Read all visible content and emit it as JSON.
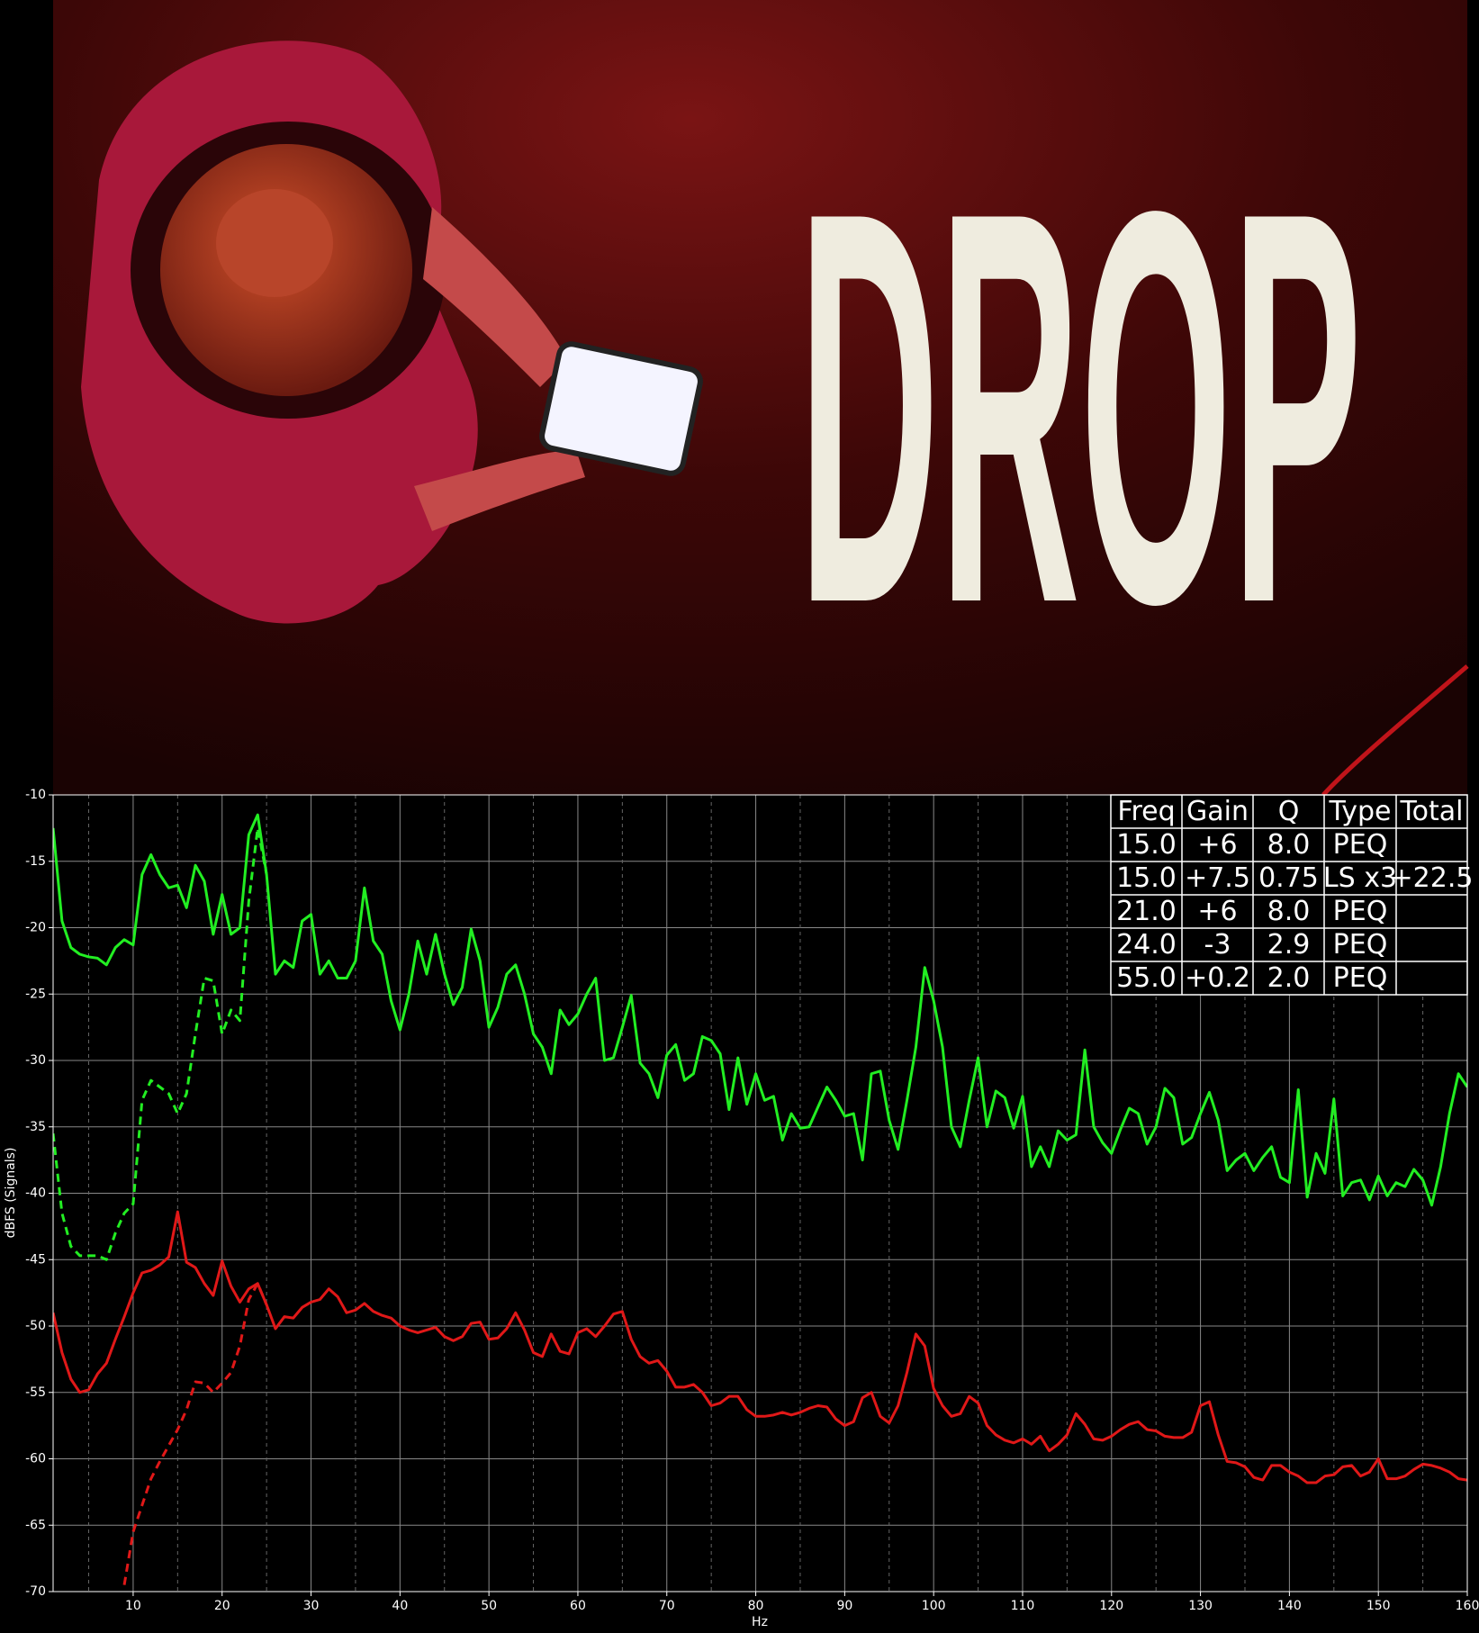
{
  "poster": {
    "title": "DROP"
  },
  "chart_data": {
    "type": "line",
    "xlabel": "Hz",
    "ylabel": "dBFS (Signals)",
    "xlim": [
      1,
      160
    ],
    "ylim": [
      -70,
      -10
    ],
    "xticks": [
      10,
      20,
      30,
      40,
      50,
      60,
      70,
      80,
      90,
      100,
      110,
      120,
      130,
      140,
      150,
      160
    ],
    "xminorticks": [
      5,
      15,
      25,
      35,
      45,
      55,
      65,
      75,
      85,
      95,
      105,
      115,
      125,
      135,
      145,
      155
    ],
    "yticks": [
      -10,
      -15,
      -20,
      -25,
      -30,
      -35,
      -40,
      -45,
      -50,
      -55,
      -60,
      -65,
      -70
    ],
    "grid": true,
    "x": [
      1,
      2,
      3,
      4,
      5,
      6,
      7,
      8,
      9,
      10,
      11,
      12,
      13,
      14,
      15,
      16,
      17,
      18,
      19,
      20,
      21,
      22,
      23,
      24,
      25,
      26,
      27,
      28,
      29,
      30,
      31,
      32,
      33,
      34,
      35,
      36,
      37,
      38,
      39,
      40,
      41,
      42,
      43,
      44,
      45,
      46,
      47,
      48,
      49,
      50,
      51,
      52,
      53,
      54,
      55,
      56,
      57,
      58,
      59,
      60,
      61,
      62,
      63,
      64,
      65,
      66,
      67,
      68,
      69,
      70,
      71,
      72,
      73,
      74,
      75,
      76,
      77,
      78,
      79,
      80,
      81,
      82,
      83,
      84,
      85,
      86,
      87,
      88,
      89,
      90,
      91,
      92,
      93,
      94,
      95,
      96,
      97,
      98,
      99,
      100,
      101,
      102,
      103,
      104,
      105,
      106,
      107,
      108,
      109,
      110,
      111,
      112,
      113,
      114,
      115,
      116,
      117,
      118,
      119,
      120,
      121,
      122,
      123,
      124,
      125,
      126,
      127,
      128,
      129,
      130,
      131,
      132,
      133,
      134,
      135,
      136,
      137,
      138,
      139,
      140,
      141,
      142,
      143,
      144,
      145,
      146,
      147,
      148,
      149,
      150,
      151,
      152,
      153,
      154,
      155,
      156,
      157,
      158,
      159,
      160
    ],
    "series": [
      {
        "color": "#22ee22",
        "dash": false,
        "values": [
          -12.5,
          -19.5,
          -21.5,
          -22,
          -22.2,
          -22.3,
          -22.8,
          -21.5,
          -20.9,
          -21.3,
          -16,
          -14.5,
          -16,
          -17,
          -16.8,
          -18.5,
          -15.3,
          -16.5,
          -20.5,
          -17.5,
          -20.5,
          -20,
          -13,
          -11.5,
          -16,
          -23.5,
          -22.5,
          -23,
          -19.5,
          -19,
          -23.5,
          -22.5,
          -23.8,
          -23.8,
          -22.5,
          -17,
          -21,
          -22,
          -25.5,
          -27.7,
          -25,
          -21,
          -23.5,
          -20.5,
          -23.5,
          -25.8,
          -24.5,
          -20.1,
          -22.5,
          -27.5,
          -26,
          -23.5,
          -22.8,
          -25,
          -28,
          -29,
          -31,
          -26.2,
          -27.3,
          -26.5,
          -25,
          -23.8,
          -30,
          -29.8,
          -27.5,
          -25.1,
          -30.2,
          -31,
          -32.8,
          -29.6,
          -28.8,
          -31.5,
          -31,
          -28.2,
          -28.5,
          -29.5,
          -33.7,
          -29.8,
          -33.3,
          -31,
          -33,
          -32.7,
          -36,
          -34,
          -35.1,
          -35,
          -33.5,
          -32,
          -33,
          -34.2,
          -34,
          -37.5,
          -31,
          -30.8,
          -34.5,
          -36.7,
          -33,
          -29,
          -23,
          -25.5,
          -29,
          -35,
          -36.5,
          -33,
          -29.8,
          -35,
          -32.3,
          -32.8,
          -35.1,
          -32.7,
          -38,
          -36.5,
          -38,
          -35.3,
          -36,
          -35.6,
          -29.2,
          -35,
          -36.2,
          -37,
          -35.2,
          -33.6,
          -34,
          -36.3,
          -35,
          -32.1,
          -32.8,
          -36.3,
          -35.8,
          -34,
          -32.4,
          -34.5,
          -38.3,
          -37.5,
          -37,
          -38.3,
          -37.3,
          -36.5,
          -38.8,
          -39.2,
          -32.2,
          -40.3,
          -37,
          -38.5,
          -32.9,
          -40.2,
          -39.2,
          -39,
          -40.5,
          -38.7,
          -40.2,
          -39.2,
          -39.5,
          -38.2,
          -39,
          -40.9,
          -38,
          -34,
          -31,
          -32
        ]
      },
      {
        "color": "#22ee22",
        "dash": true,
        "x": [
          1,
          2,
          3,
          4,
          5,
          6,
          7,
          8,
          9,
          10,
          11,
          12,
          13,
          14,
          15,
          16,
          17,
          18,
          19,
          20,
          21,
          22,
          23,
          24,
          25
        ],
        "values": [
          -35.5,
          -41.5,
          -44,
          -44.7,
          -44.7,
          -44.7,
          -45,
          -43,
          -41.5,
          -40.8,
          -33,
          -31.5,
          -32,
          -32.5,
          -34,
          -32.5,
          -28,
          -23.8,
          -24,
          -28,
          -26.2,
          -27,
          -18,
          -12.5,
          -16
        ]
      },
      {
        "color": "#e01818",
        "dash": false,
        "values": [
          -49,
          -52,
          -54,
          -55,
          -54.8,
          -53.6,
          -52.8,
          -51,
          -49.3,
          -47.5,
          -46,
          -45.8,
          -45.4,
          -44.8,
          -41.4,
          -45.2,
          -45.6,
          -46.8,
          -47.7,
          -45.1,
          -47,
          -48.2,
          -47.2,
          -46.8,
          -48.4,
          -50.2,
          -49.3,
          -49.4,
          -48.6,
          -48.2,
          -48,
          -47.2,
          -47.8,
          -49,
          -48.8,
          -48.3,
          -48.9,
          -49.2,
          -49.4,
          -50,
          -50.3,
          -50.5,
          -50.3,
          -50.1,
          -50.8,
          -51.1,
          -50.8,
          -49.8,
          -49.7,
          -51,
          -50.9,
          -50.2,
          -49,
          -50.3,
          -52,
          -52.3,
          -50.6,
          -51.9,
          -52.1,
          -50.5,
          -50.2,
          -50.8,
          -50,
          -49.1,
          -48.9,
          -51,
          -52.3,
          -52.8,
          -52.6,
          -53.4,
          -54.6,
          -54.6,
          -54.4,
          -55,
          -56,
          -55.8,
          -55.3,
          -55.3,
          -56.3,
          -56.8,
          -56.8,
          -56.7,
          -56.5,
          -56.7,
          -56.5,
          -56.2,
          -56,
          -56.1,
          -57,
          -57.5,
          -57.2,
          -55.4,
          -55,
          -56.8,
          -57.3,
          -56,
          -53.5,
          -50.6,
          -51.5,
          -54.7,
          -56,
          -56.8,
          -56.6,
          -55.3,
          -55.8,
          -57.5,
          -58.2,
          -58.6,
          -58.8,
          -58.5,
          -58.9,
          -58.3,
          -59.4,
          -58.9,
          -58.2,
          -56.6,
          -57.4,
          -58.5,
          -58.6,
          -58.3,
          -57.8,
          -57.4,
          -57.2,
          -57.8,
          -57.9,
          -58.3,
          -58.4,
          -58.4,
          -58,
          -56,
          -55.7,
          -58.2,
          -60.2,
          -60.3,
          -60.6,
          -61.4,
          -61.6,
          -60.5,
          -60.5,
          -61,
          -61.3,
          -61.8,
          -61.8,
          -61.3,
          -61.2,
          -60.6,
          -60.5,
          -61.3,
          -61,
          -60,
          -61.5,
          -61.5,
          -61.3,
          -60.8,
          -60.4,
          -60.5,
          -60.7,
          -61,
          -61.5,
          -61.6
        ]
      },
      {
        "color": "#e01818",
        "dash": true,
        "x": [
          9,
          10,
          11,
          12,
          13,
          14,
          15,
          16,
          17,
          18,
          19,
          20,
          21,
          22,
          23,
          24,
          25
        ],
        "values": [
          -69.5,
          -65.5,
          -63.5,
          -61.5,
          -60.2,
          -59,
          -57.8,
          -56.3,
          -54.2,
          -54.3,
          -55,
          -54.3,
          -53.5,
          -51.5,
          -48,
          -46.8,
          -48.4
        ]
      }
    ],
    "table": {
      "header": [
        "Freq",
        "Gain",
        "Q",
        "Type",
        "Total"
      ],
      "rows": [
        [
          "15.0",
          "+6",
          "8.0",
          "PEQ",
          null
        ],
        [
          "15.0",
          "+7.5",
          "0.75",
          "LS x3",
          "+22.5"
        ],
        [
          "21.0",
          "+6",
          "8.0",
          "PEQ",
          null
        ],
        [
          "24.0",
          "-3",
          "2.9",
          "PEQ",
          null
        ],
        [
          "55.0",
          "+0.2",
          "2.0",
          "PEQ",
          null
        ]
      ]
    }
  }
}
